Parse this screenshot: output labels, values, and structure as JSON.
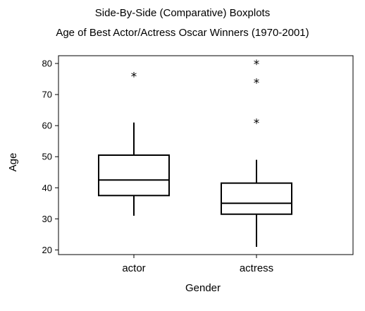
{
  "chart_data": {
    "type": "boxplot",
    "title": "Side-By-Side (Comparative) Boxplots",
    "subtitle": "Age of Best Actor/Actress Oscar Winners (1970-2001)",
    "xlabel": "Gender",
    "ylabel": "Age",
    "ylim": [
      18.5,
      82.5
    ],
    "yticks": [
      20,
      30,
      40,
      50,
      60,
      70,
      80
    ],
    "grid": false,
    "categories": [
      "actor",
      "actress"
    ],
    "boxes": [
      {
        "category": "actor",
        "whisker_low": 31,
        "q1": 37.5,
        "median": 42.5,
        "q3": 50.5,
        "whisker_high": 61,
        "outliers": [
          76
        ]
      },
      {
        "category": "actress",
        "whisker_low": 21,
        "q1": 31.5,
        "median": 35,
        "q3": 41.5,
        "whisker_high": 49,
        "outliers": [
          61,
          74,
          80
        ]
      }
    ]
  }
}
